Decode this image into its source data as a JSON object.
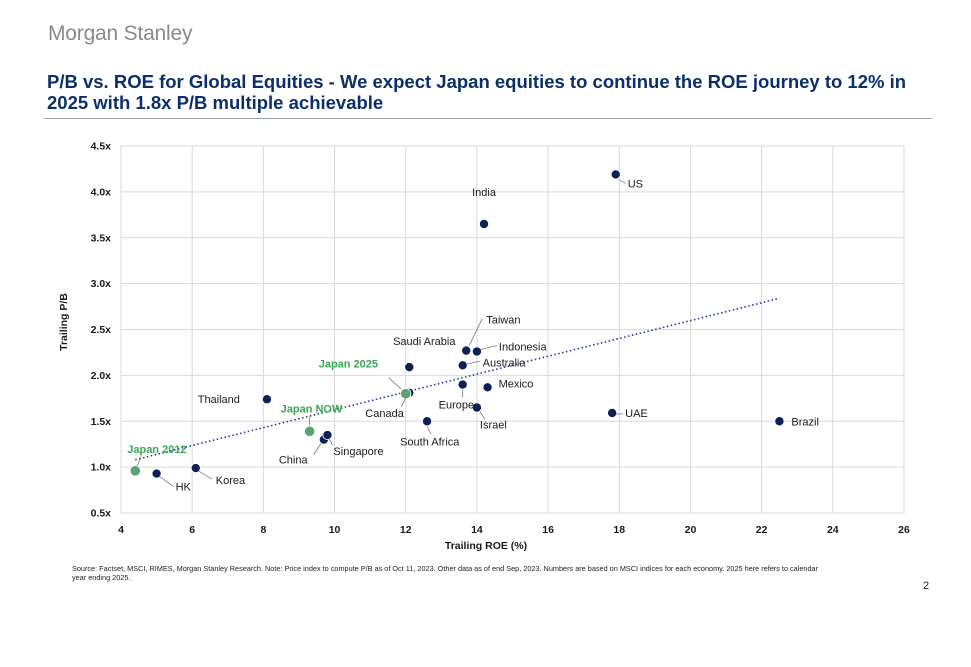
{
  "header": {
    "brand": "Morgan Stanley",
    "title": "P/B vs. ROE for Global Equities - We expect Japan equities to continue the ROE journey to 12% in 2025 with 1.8x P/B multiple achievable"
  },
  "footer": {
    "source": "Source: Factset, MSCI, RIMES, Morgan Stanley Research. Note: Price index to compute P/B as of Oct 11, 2023. Other data as of end Sep, 2023. Numbers are based on MSCI indices for each economy. 2025 here refers to calendar year ending 2025.",
    "page": "2"
  },
  "chart_data": {
    "type": "scatter",
    "title": "",
    "xlabel": "Trailing ROE (%)",
    "ylabel": "Trailing P/B",
    "xlim": [
      4,
      26
    ],
    "ylim": [
      0.5,
      4.5
    ],
    "x_ticks": [
      4,
      6,
      8,
      10,
      12,
      14,
      16,
      18,
      20,
      22,
      24,
      26
    ],
    "x_tick_labels": [
      "4",
      "6",
      "8",
      "10",
      "12",
      "14",
      "16",
      "18",
      "20",
      "22",
      "24",
      "26"
    ],
    "y_ticks": [
      0.5,
      1.0,
      1.5,
      2.0,
      2.5,
      3.0,
      3.5,
      4.0,
      4.5
    ],
    "y_tick_labels": [
      "0.5x",
      "1.0x",
      "1.5x",
      "2.0x",
      "2.5x",
      "3.0x",
      "3.5x",
      "4.0x",
      "4.5x"
    ],
    "grid": true,
    "colors": {
      "economy": "#0d2156",
      "japan": "#5aa36e",
      "japan_label": "#3aa655",
      "trend": "#1f3f86"
    },
    "points": [
      {
        "label": "US",
        "x": 17.9,
        "y": 4.19,
        "group": "economy"
      },
      {
        "label": "India",
        "x": 14.2,
        "y": 3.65,
        "group": "economy"
      },
      {
        "label": "Taiwan",
        "x": 13.7,
        "y": 2.27,
        "group": "economy"
      },
      {
        "label": "Indonesia",
        "x": 14.0,
        "y": 2.26,
        "group": "economy"
      },
      {
        "label": "Saudi Arabia",
        "x": 12.1,
        "y": 2.09,
        "group": "economy"
      },
      {
        "label": "Australia",
        "x": 13.6,
        "y": 2.11,
        "group": "economy"
      },
      {
        "label": "Mexico",
        "x": 14.3,
        "y": 1.87,
        "group": "economy"
      },
      {
        "label": "Europe",
        "x": 13.6,
        "y": 1.9,
        "group": "economy"
      },
      {
        "label": "Israel",
        "x": 14.0,
        "y": 1.65,
        "group": "economy"
      },
      {
        "label": "Canada",
        "x": 12.1,
        "y": 1.81,
        "group": "economy"
      },
      {
        "label": "South Africa",
        "x": 12.6,
        "y": 1.5,
        "group": "economy"
      },
      {
        "label": "UAE",
        "x": 17.8,
        "y": 1.59,
        "group": "economy"
      },
      {
        "label": "Brazil",
        "x": 22.5,
        "y": 1.5,
        "group": "economy"
      },
      {
        "label": "Thailand",
        "x": 8.1,
        "y": 1.74,
        "group": "economy"
      },
      {
        "label": "China",
        "x": 9.7,
        "y": 1.3,
        "group": "economy"
      },
      {
        "label": "Singapore",
        "x": 9.8,
        "y": 1.35,
        "group": "economy"
      },
      {
        "label": "Korea",
        "x": 6.1,
        "y": 0.99,
        "group": "economy"
      },
      {
        "label": "HK",
        "x": 5.0,
        "y": 0.93,
        "group": "economy"
      },
      {
        "label": "Japan 2025",
        "x": 12.0,
        "y": 1.8,
        "group": "japan"
      },
      {
        "label": "Japan NOW",
        "x": 9.3,
        "y": 1.39,
        "group": "japan"
      },
      {
        "label": "Japan 2012",
        "x": 4.4,
        "y": 0.96,
        "group": "japan"
      }
    ],
    "trendline": {
      "style": "dotted",
      "from": [
        4.4,
        1.08
      ],
      "to": [
        22.5,
        2.84
      ]
    }
  }
}
